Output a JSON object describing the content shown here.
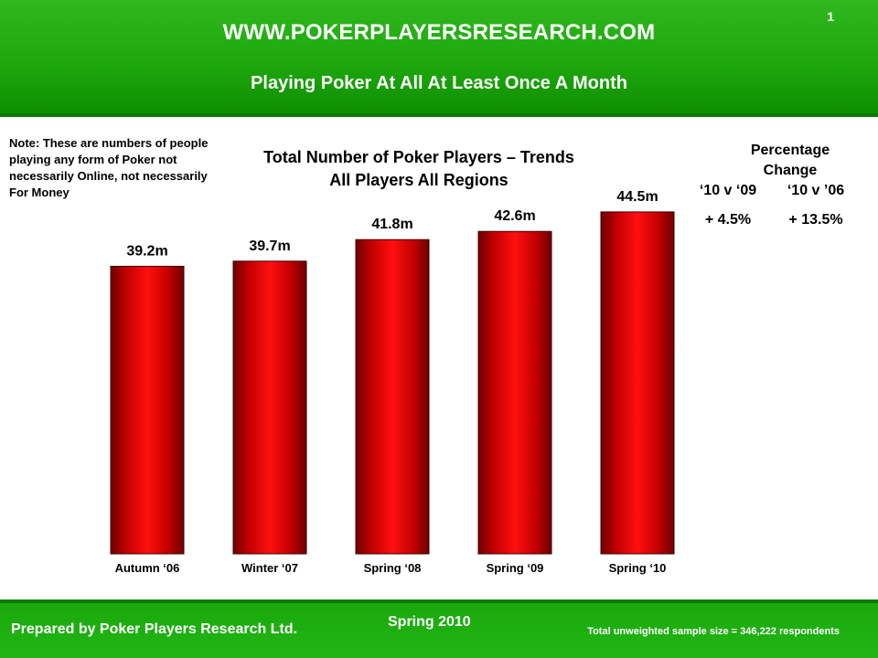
{
  "header": {
    "site_url": "WWW.POKERPLAYERSRESEARCH.COM",
    "subtitle": "Playing Poker At All At Least Once A Month",
    "page_number": "1"
  },
  "note": "Note: These are numbers of people playing any form of Poker not necessarily Online, not necessarily For Money",
  "percentage_change": {
    "heading": "Percentage Change",
    "columns": [
      {
        "label": "‘10 v ‘09",
        "value": "+ 4.5%"
      },
      {
        "label": "‘10 v ’06",
        "value": "+ 13.5%"
      }
    ]
  },
  "chart_data": {
    "type": "bar",
    "title": "Total Number of Poker Players – Trends",
    "subtitle": "All Players All Regions",
    "categories": [
      "Autumn ‘06",
      "Winter ‘07",
      "Spring ‘08",
      "Spring ‘09",
      "Spring ‘10"
    ],
    "values": [
      39.2,
      39.7,
      41.8,
      42.6,
      44.5
    ],
    "value_labels": [
      "39.2m",
      "39.7m",
      "41.8m",
      "42.6m",
      "44.5m"
    ],
    "unit": "m",
    "ylim": [
      0,
      47
    ],
    "grid": false,
    "bar_color": "#e0080b"
  },
  "footer": {
    "prepared_by": "Prepared by Poker Players Research Ltd.",
    "season": "Spring 2010",
    "sample": "Total unweighted  sample size = 346,222  respondents"
  }
}
